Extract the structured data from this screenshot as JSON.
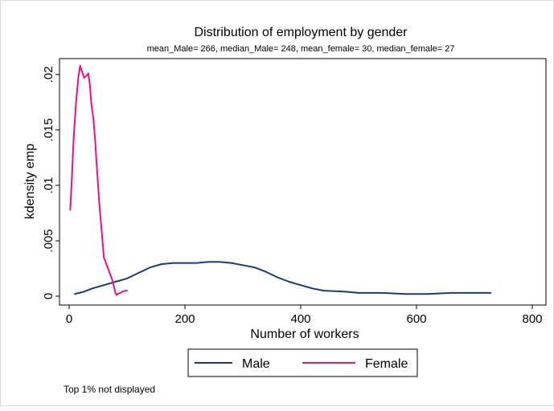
{
  "chart_data": {
    "type": "line",
    "title": "Distribution of employment by gender",
    "subtitle": "mean_Male= 266, median_Male= 248, mean_female= 30, median_female= 27",
    "xlabel": "Number of workers",
    "ylabel": "kdensity emp",
    "xlim": [
      0,
      800
    ],
    "ylim": [
      0,
      0.021
    ],
    "x_ticks": [
      "0",
      "200",
      "400",
      "600",
      "800"
    ],
    "y_ticks": [
      "0",
      ".005",
      ".01",
      ".015",
      ".02"
    ],
    "grid": false,
    "legend_position": "bottom",
    "note": "Top 1% not displayed",
    "series": [
      {
        "name": "Male",
        "color": "#1a3a6e",
        "x": [
          10,
          25,
          40,
          60,
          80,
          100,
          120,
          140,
          160,
          180,
          200,
          220,
          240,
          260,
          280,
          300,
          320,
          340,
          360,
          380,
          400,
          420,
          440,
          460,
          480,
          500,
          520,
          540,
          560,
          580,
          600,
          620,
          640,
          660,
          680,
          700,
          728
        ],
        "y": [
          0.0002,
          0.0004,
          0.0007,
          0.001,
          0.0013,
          0.0016,
          0.0021,
          0.0026,
          0.0029,
          0.003,
          0.003,
          0.003,
          0.0031,
          0.0031,
          0.003,
          0.0028,
          0.0026,
          0.0022,
          0.0017,
          0.0013,
          0.001,
          0.0007,
          0.0005,
          0.00045,
          0.0004,
          0.0003,
          0.0003,
          0.0003,
          0.00025,
          0.0002,
          0.0002,
          0.0002,
          0.00025,
          0.0003,
          0.0003,
          0.0003,
          0.0003
        ]
      },
      {
        "name": "Female",
        "color": "#e8117f",
        "x": [
          2,
          5,
          8,
          12,
          16,
          19,
          22,
          26,
          30,
          33,
          36,
          38,
          42,
          45,
          48,
          52,
          56,
          60,
          65,
          70,
          75,
          78,
          80,
          82,
          84,
          88,
          92,
          97,
          100
        ],
        "y": [
          0.0078,
          0.011,
          0.0145,
          0.0175,
          0.0198,
          0.0208,
          0.0203,
          0.0197,
          0.0199,
          0.0201,
          0.019,
          0.0175,
          0.016,
          0.014,
          0.0115,
          0.0085,
          0.006,
          0.0035,
          0.0028,
          0.0021,
          0.0014,
          0.0007,
          0.0003,
          0.0001,
          0.0002,
          0.0003,
          0.0004,
          0.0005,
          0.0005
        ]
      }
    ]
  }
}
